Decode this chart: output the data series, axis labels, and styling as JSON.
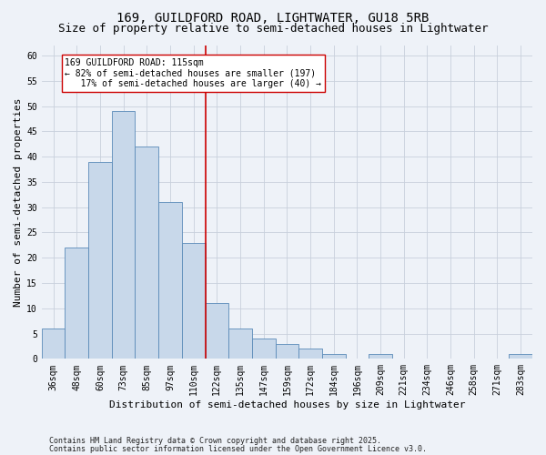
{
  "title1": "169, GUILDFORD ROAD, LIGHTWATER, GU18 5RB",
  "title2": "Size of property relative to semi-detached houses in Lightwater",
  "xlabel": "Distribution of semi-detached houses by size in Lightwater",
  "ylabel": "Number of semi-detached properties",
  "footnote1": "Contains HM Land Registry data © Crown copyright and database right 2025.",
  "footnote2": "Contains public sector information licensed under the Open Government Licence v3.0.",
  "bin_labels": [
    "36sqm",
    "48sqm",
    "60sqm",
    "73sqm",
    "85sqm",
    "97sqm",
    "110sqm",
    "122sqm",
    "135sqm",
    "147sqm",
    "159sqm",
    "172sqm",
    "184sqm",
    "196sqm",
    "209sqm",
    "221sqm",
    "234sqm",
    "246sqm",
    "258sqm",
    "271sqm",
    "283sqm"
  ],
  "bin_values": [
    6,
    22,
    39,
    49,
    42,
    31,
    23,
    11,
    6,
    4,
    3,
    2,
    1,
    0,
    1,
    0,
    0,
    0,
    0,
    0,
    1
  ],
  "bar_color": "#c8d8ea",
  "bar_edge_color": "#5a8ab8",
  "vline_color": "#cc0000",
  "vline_x_index": 6.5,
  "annotation_text": "169 GUILDFORD ROAD: 115sqm\n← 82% of semi-detached houses are smaller (197)\n   17% of semi-detached houses are larger (40) →",
  "annotation_box_facecolor": "#ffffff",
  "annotation_box_edgecolor": "#cc0000",
  "background_color": "#eef2f8",
  "ylim": [
    0,
    62
  ],
  "yticks": [
    0,
    5,
    10,
    15,
    20,
    25,
    30,
    35,
    40,
    45,
    50,
    55,
    60
  ],
  "grid_color": "#c8d0dc",
  "title1_fontsize": 10,
  "title2_fontsize": 9,
  "axis_label_fontsize": 8,
  "tick_fontsize": 7,
  "annotation_fontsize": 7,
  "footnote_fontsize": 6
}
